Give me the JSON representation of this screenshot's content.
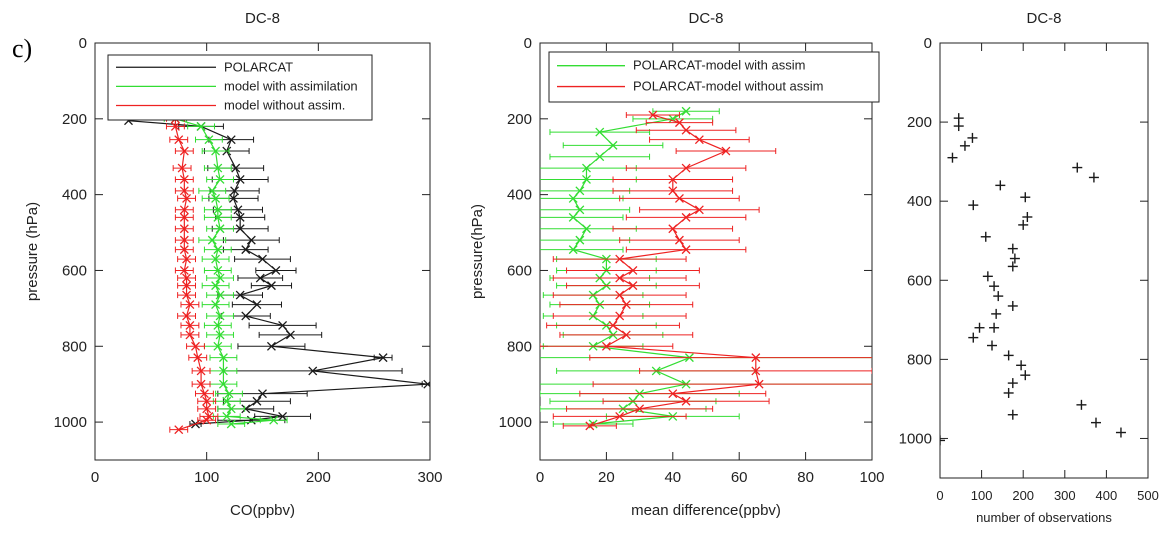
{
  "panel_label": "c)",
  "colors": {
    "black": "#1a1a1a",
    "green": "#33dd33",
    "red": "#ee2222",
    "axis": "#222222"
  },
  "chart_data": [
    {
      "type": "line",
      "title": "DC-8",
      "xlabel": "CO(ppbv)",
      "ylabel": "pressure (hPa)",
      "xlim": [
        0,
        300
      ],
      "ylim": [
        1100,
        0
      ],
      "xticks": [
        0,
        100,
        200,
        300
      ],
      "yticks": [
        0,
        200,
        400,
        600,
        800,
        1000
      ],
      "legend": {
        "placement": "top",
        "entries": [
          "POLARCAT",
          "model with assimilation",
          "model without assim."
        ]
      },
      "series": [
        {
          "name": "POLARCAT",
          "color": "black",
          "marker": "x",
          "x": [
            30,
            30,
            95,
            122,
            118,
            126,
            130,
            125,
            124,
            128,
            130,
            130,
            140,
            135,
            150,
            162,
            148,
            158,
            130,
            145,
            135,
            168,
            175,
            158,
            258,
            195,
            298,
            150,
            145,
            135,
            168,
            140,
            90
          ],
          "y": [
            180,
            205,
            220,
            255,
            285,
            330,
            360,
            390,
            410,
            440,
            460,
            490,
            520,
            545,
            570,
            600,
            620,
            640,
            665,
            690,
            720,
            745,
            770,
            800,
            830,
            865,
            900,
            925,
            945,
            965,
            985,
            995,
            1005
          ],
          "xerr": [
            0,
            0,
            20,
            20,
            20,
            25,
            25,
            22,
            22,
            22,
            22,
            25,
            25,
            20,
            25,
            18,
            20,
            18,
            20,
            22,
            22,
            30,
            28,
            30,
            8,
            80,
            5,
            40,
            30,
            25,
            25,
            30,
            5
          ]
        },
        {
          "name": "model with assimilation",
          "color": "green",
          "marker": "x",
          "x": [
            72,
            95,
            102,
            108,
            110,
            112,
            105,
            108,
            110,
            110,
            112,
            105,
            110,
            108,
            110,
            112,
            108,
            112,
            108,
            112,
            110,
            112,
            110,
            115,
            115,
            115,
            120,
            118,
            122,
            118,
            160,
            122
          ],
          "y": [
            200,
            220,
            255,
            285,
            330,
            360,
            390,
            410,
            440,
            460,
            490,
            520,
            545,
            570,
            600,
            620,
            640,
            665,
            690,
            720,
            745,
            770,
            800,
            830,
            865,
            900,
            925,
            945,
            965,
            985,
            995,
            1005
          ],
          "xerr": [
            10,
            12,
            12,
            12,
            12,
            12,
            12,
            12,
            12,
            12,
            12,
            12,
            12,
            12,
            12,
            12,
            12,
            12,
            12,
            12,
            12,
            12,
            12,
            12,
            12,
            12,
            12,
            12,
            12,
            12,
            12,
            12
          ]
        },
        {
          "name": "model without assim.",
          "color": "red",
          "marker": "x",
          "x": [
            72,
            72,
            75,
            80,
            78,
            80,
            80,
            82,
            80,
            80,
            80,
            80,
            80,
            82,
            80,
            82,
            82,
            82,
            85,
            82,
            85,
            85,
            90,
            92,
            95,
            95,
            98,
            100,
            100,
            102,
            100,
            75
          ],
          "y": [
            200,
            220,
            255,
            285,
            330,
            360,
            390,
            410,
            440,
            460,
            490,
            520,
            545,
            570,
            600,
            620,
            640,
            665,
            690,
            720,
            745,
            770,
            800,
            830,
            865,
            900,
            925,
            945,
            965,
            985,
            995,
            1020
          ],
          "xerr": [
            8,
            8,
            8,
            8,
            8,
            8,
            8,
            8,
            8,
            8,
            8,
            8,
            8,
            8,
            8,
            8,
            8,
            8,
            8,
            8,
            8,
            8,
            8,
            8,
            8,
            8,
            8,
            8,
            8,
            8,
            8,
            8
          ]
        }
      ]
    },
    {
      "type": "line",
      "title": "DC-8",
      "xlabel": "mean difference(ppbv)",
      "ylabel": "pressure(hPa)",
      "xlim": [
        0,
        100
      ],
      "ylim": [
        1100,
        0
      ],
      "xticks": [
        0,
        20,
        40,
        60,
        80,
        100
      ],
      "yticks": [
        0,
        200,
        400,
        600,
        800,
        1000
      ],
      "legend": {
        "placement": "top",
        "entries": [
          "POLARCAT-model with assim",
          "POLARCAT-model without assim"
        ]
      },
      "series": [
        {
          "name": "POLARCAT-model with assim",
          "color": "green",
          "marker": "x",
          "x": [
            44,
            40,
            18,
            22,
            18,
            14,
            14,
            12,
            10,
            12,
            10,
            14,
            12,
            10,
            20,
            20,
            18,
            20,
            16,
            18,
            16,
            20,
            22,
            16,
            45,
            35,
            44,
            30,
            28,
            25,
            40,
            16
          ],
          "y": [
            180,
            200,
            235,
            270,
            300,
            330,
            360,
            390,
            410,
            440,
            460,
            490,
            520,
            545,
            570,
            600,
            620,
            640,
            665,
            690,
            720,
            745,
            770,
            800,
            830,
            865,
            900,
            925,
            945,
            965,
            985,
            1005
          ],
          "xerr": [
            10,
            12,
            15,
            15,
            15,
            15,
            15,
            15,
            15,
            15,
            15,
            15,
            15,
            15,
            15,
            15,
            15,
            15,
            15,
            15,
            15,
            15,
            15,
            15,
            60,
            30,
            60,
            30,
            25,
            25,
            20,
            12
          ]
        },
        {
          "name": "POLARCAT-model without assim",
          "color": "red",
          "marker": "x",
          "x": [
            34,
            42,
            44,
            48,
            56,
            44,
            40,
            40,
            42,
            48,
            44,
            40,
            42,
            44,
            24,
            28,
            24,
            28,
            24,
            26,
            24,
            22,
            26,
            20,
            65,
            65,
            66,
            40,
            44,
            30,
            24,
            15
          ],
          "y": [
            190,
            210,
            230,
            255,
            285,
            330,
            360,
            390,
            410,
            440,
            460,
            490,
            520,
            545,
            570,
            600,
            620,
            640,
            665,
            690,
            720,
            745,
            770,
            800,
            830,
            865,
            900,
            925,
            945,
            965,
            985,
            1010
          ],
          "xerr": [
            8,
            10,
            15,
            15,
            15,
            18,
            18,
            18,
            18,
            18,
            18,
            18,
            18,
            18,
            20,
            20,
            20,
            20,
            20,
            20,
            20,
            20,
            20,
            20,
            50,
            35,
            50,
            28,
            25,
            22,
            20,
            8
          ]
        }
      ]
    },
    {
      "type": "scatter",
      "title": "DC-8",
      "xlabel": "number of observations",
      "ylabel": "",
      "xlim": [
        0,
        500
      ],
      "ylim": [
        1100,
        0
      ],
      "xticks": [
        0,
        100,
        200,
        300,
        400,
        500
      ],
      "yticks": [
        0,
        200,
        400,
        600,
        800,
        1000
      ],
      "marker": "+",
      "x": [
        45,
        45,
        60,
        78,
        30,
        330,
        370,
        145,
        205,
        80,
        210,
        200,
        110,
        175,
        180,
        175,
        115,
        130,
        140,
        135,
        175,
        130,
        95,
        80,
        125,
        165,
        195,
        205,
        175,
        165,
        175,
        340,
        375,
        435,
        0
      ],
      "y": [
        190,
        210,
        260,
        240,
        290,
        315,
        340,
        360,
        390,
        410,
        440,
        460,
        490,
        520,
        545,
        565,
        590,
        615,
        640,
        685,
        665,
        720,
        720,
        745,
        765,
        790,
        815,
        840,
        860,
        885,
        940,
        915,
        960,
        985,
        1005
      ]
    }
  ]
}
